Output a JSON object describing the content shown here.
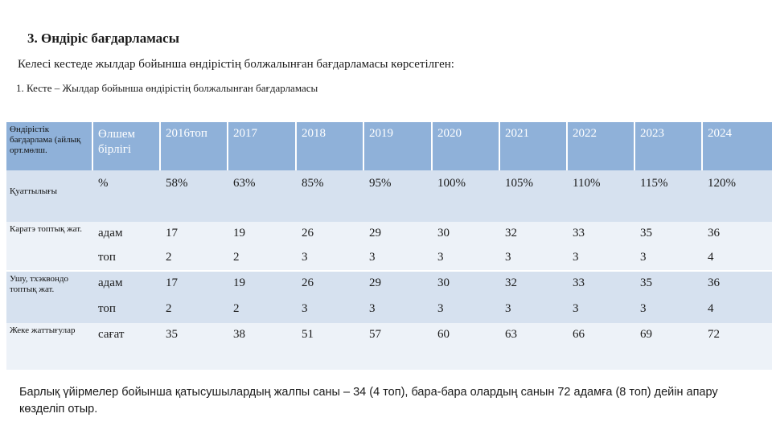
{
  "heading": "3. Өндіріс бағдарламасы",
  "intro": "Келесі кестеде жылдар бойынша өндірістің болжалынған бағдарламасы көрсетілген:",
  "caption": "1. Кесте – Жылдар бойынша өндірістің болжалынған бағдарламасы",
  "table": {
    "header": {
      "side": "Өндірістік бағдарлама (айлық орт.мөлш.",
      "cells": [
        "Өлшем бірлігі",
        "2016топ",
        "2017",
        "2018",
        "2019",
        "2020",
        "2021",
        "2022",
        "2023",
        "2024"
      ]
    },
    "rows": [
      {
        "side": "Қуаттылығы",
        "cells": [
          "%",
          "58%",
          "63%",
          "85%",
          "95%",
          "100%",
          "105%",
          "110%",
          "115%",
          "120%"
        ]
      },
      {
        "side": "Каратэ топтық жат.",
        "cells": [
          "адам",
          "17",
          "19",
          "26",
          "29",
          "30",
          "32",
          "33",
          "35",
          "36"
        ]
      },
      {
        "side": "",
        "cells": [
          "топ",
          "2",
          "2",
          "3",
          "3",
          "3",
          "3",
          "3",
          "3",
          "4"
        ]
      },
      {
        "side": "Ушу, тхэквондо топтық жат.",
        "cells": [
          "адам",
          "17",
          "19",
          "26",
          "29",
          "30",
          "32",
          "33",
          "35",
          "36"
        ]
      },
      {
        "side": "",
        "cells": [
          "топ",
          "2",
          "2",
          "3",
          "3",
          "3",
          "3",
          "3",
          "3",
          "4"
        ]
      },
      {
        "side": "Жеке жаттығулар",
        "cells": [
          "сағат",
          "35",
          "38",
          "51",
          "57",
          "60",
          "63",
          "66",
          "69",
          "72"
        ]
      }
    ]
  },
  "footer": "Барлық үйірмелер бойынша қатысушылардың жалпы саны – 34 (4 топ), бара-бара олардың санын 72 адамға (8 топ) дейін апару көзделіп отыр.",
  "colors": {
    "header_bg": "#8fb1d9",
    "band_dark": "#d6e1ef",
    "band_light": "#edf2f8",
    "side_bg": "#c5d5ea"
  }
}
